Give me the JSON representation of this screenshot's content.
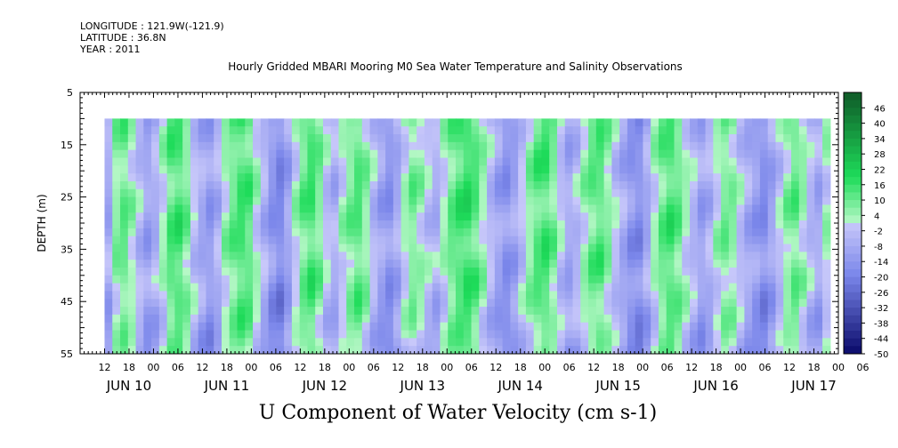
{
  "meta": {
    "longitude": "LONGITUDE : 121.9W(-121.9)",
    "latitude": "LATITUDE : 36.8N",
    "year": "YEAR : 2011"
  },
  "title": "Hourly Gridded MBARI Mooring M0 Sea Water Temperature and Salinity Observations",
  "caption": "U Component of Water Velocity (cm s-1)",
  "chart_data": {
    "type": "heatmap",
    "title": "Hourly Gridded MBARI Mooring M0 Sea Water Temperature and Salinity Observations",
    "xlabel": "",
    "ylabel": "DEPTH (m)",
    "colorbar_label": "U Component of Water Velocity (cm s-1)",
    "y_axis": {
      "range": [
        5,
        55
      ],
      "inverted": true,
      "ticks": [
        5,
        15,
        25,
        35,
        45,
        55
      ]
    },
    "x_axis": {
      "range_hours": [
        0,
        186
      ],
      "hour_ticks": [
        "12",
        "18",
        "00",
        "06",
        "12",
        "18",
        "00",
        "06",
        "12",
        "18",
        "00",
        "06",
        "12",
        "18",
        "00",
        "06",
        "12",
        "18",
        "00",
        "06",
        "12",
        "18",
        "00",
        "06",
        "12",
        "18",
        "00",
        "06",
        "12",
        "18",
        "00",
        "06"
      ],
      "date_labels": [
        "JUN 10",
        "JUN 11",
        "JUN 12",
        "JUN 13",
        "JUN 14",
        "JUN 15",
        "JUN 16",
        "JUN 17"
      ]
    },
    "colorbar": {
      "levels": [
        "46",
        "40",
        "34",
        "28",
        "22",
        "16",
        "10",
        "4",
        "-2",
        "-8",
        "-14",
        "-20",
        "-26",
        "-32",
        "-38",
        "-44",
        "-50"
      ],
      "range": [
        -50,
        52
      ]
    },
    "data_extent": {
      "depth_range": [
        10,
        55
      ],
      "start": "JUN 10 18",
      "end": "JUN 17 08"
    },
    "column_profiles_u": [
      -8,
      6,
      10,
      4,
      -4,
      -10,
      -6,
      2,
      12,
      14,
      8,
      -2,
      -8,
      -12,
      -6,
      4,
      10,
      14,
      12,
      2,
      -6,
      -14,
      -18,
      -10,
      2,
      10,
      14,
      8,
      -2,
      -6,
      2,
      8,
      12,
      6,
      -4,
      -10,
      -14,
      -8,
      2,
      8,
      4,
      -2,
      -6,
      2,
      10,
      14,
      16,
      12,
      4,
      -4,
      -10,
      -14,
      -10,
      -2,
      6,
      12,
      14,
      8,
      -2,
      -8,
      -4,
      4,
      10,
      12,
      6,
      -2,
      -8,
      -14,
      -16,
      -8,
      2,
      10,
      14,
      10,
      2,
      -4,
      -10,
      -6,
      2,
      8,
      6,
      -2,
      -8,
      -12,
      -16,
      -10,
      -2,
      6,
      10,
      4,
      -4,
      -8,
      2
    ],
    "colors": {
      "pos_dark": "#0f5a28",
      "pos_mid": "#1edc5a",
      "pos_light": "#b8f8c8",
      "neg_light": "#c8c8fa",
      "neg_mid": "#7a86ea",
      "neg_dark": "#0a0a6a"
    }
  }
}
